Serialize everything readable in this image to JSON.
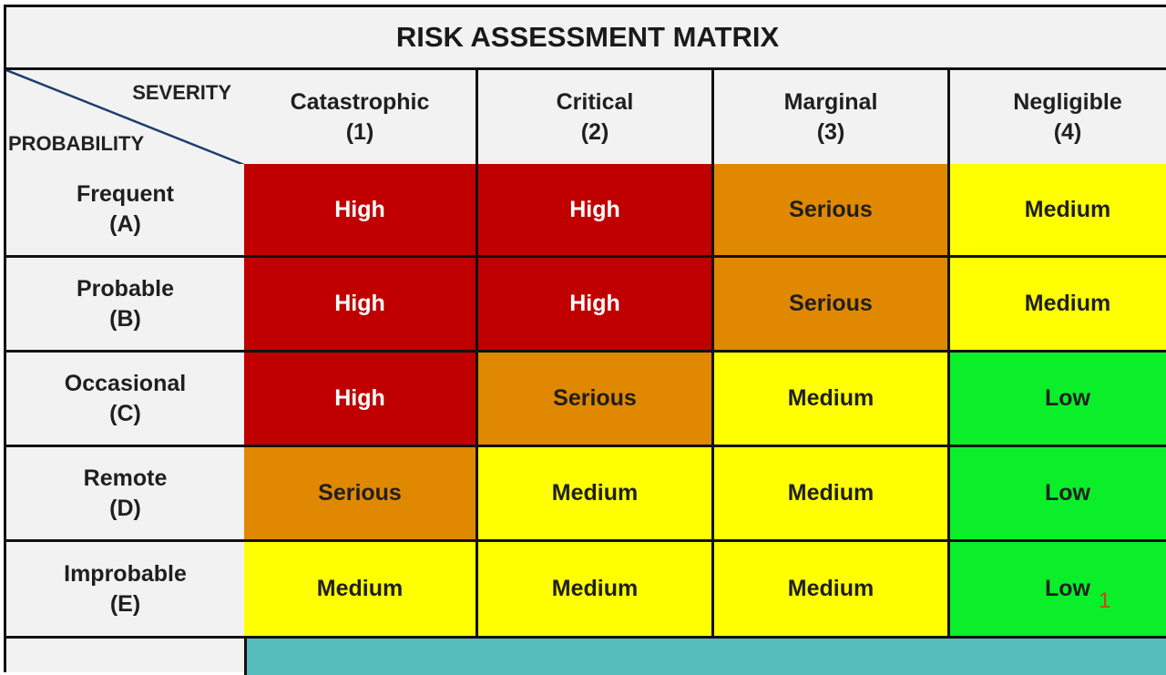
{
  "title": "RISK ASSESSMENT MATRIX",
  "corner": {
    "top_label": "SEVERITY",
    "bottom_label": "PROBABILITY",
    "line_color": "#1f3c6e"
  },
  "severity": [
    {
      "name": "Catastrophic",
      "code": "(1)"
    },
    {
      "name": "Critical",
      "code": "(2)"
    },
    {
      "name": "Marginal",
      "code": "(3)"
    },
    {
      "name": "Negligible",
      "code": "(4)"
    }
  ],
  "probability": [
    {
      "name": "Frequent",
      "code": "(A)"
    },
    {
      "name": "Probable",
      "code": "(B)"
    },
    {
      "name": "Occasional",
      "code": "(C)"
    },
    {
      "name": "Remote",
      "code": "(D)"
    },
    {
      "name": "Improbable",
      "code": "(E)"
    }
  ],
  "levels": {
    "High": {
      "bg": "#c00000",
      "fg": "#ffffff"
    },
    "Serious": {
      "bg": "#e08800",
      "fg": "#1f1f1f"
    },
    "Medium": {
      "bg": "#ffff00",
      "fg": "#1f1f1f"
    },
    "Low": {
      "bg": "#0aef2a",
      "fg": "#1f1f1f"
    }
  },
  "grid": [
    [
      "High",
      "High",
      "Serious",
      "Medium"
    ],
    [
      "High",
      "High",
      "Serious",
      "Medium"
    ],
    [
      "High",
      "Serious",
      "Medium",
      "Low"
    ],
    [
      "Serious",
      "Medium",
      "Medium",
      "Low"
    ],
    [
      "Medium",
      "Medium",
      "Medium",
      "Low"
    ]
  ],
  "footer_bar_color": "#56bcbc",
  "annotation": "1",
  "chart_data": {
    "type": "table",
    "title": "RISK ASSESSMENT MATRIX",
    "columns": [
      "Catastrophic (1)",
      "Critical (2)",
      "Marginal (3)",
      "Negligible (4)"
    ],
    "rows": [
      "Frequent (A)",
      "Probable (B)",
      "Occasional (C)",
      "Remote (D)",
      "Improbable (E)"
    ],
    "values": [
      [
        "High",
        "High",
        "Serious",
        "Medium"
      ],
      [
        "High",
        "High",
        "Serious",
        "Medium"
      ],
      [
        "High",
        "Serious",
        "Medium",
        "Low"
      ],
      [
        "Serious",
        "Medium",
        "Medium",
        "Low"
      ],
      [
        "Medium",
        "Medium",
        "Medium",
        "Low"
      ]
    ],
    "xlabel": "SEVERITY",
    "ylabel": "PROBABILITY"
  }
}
